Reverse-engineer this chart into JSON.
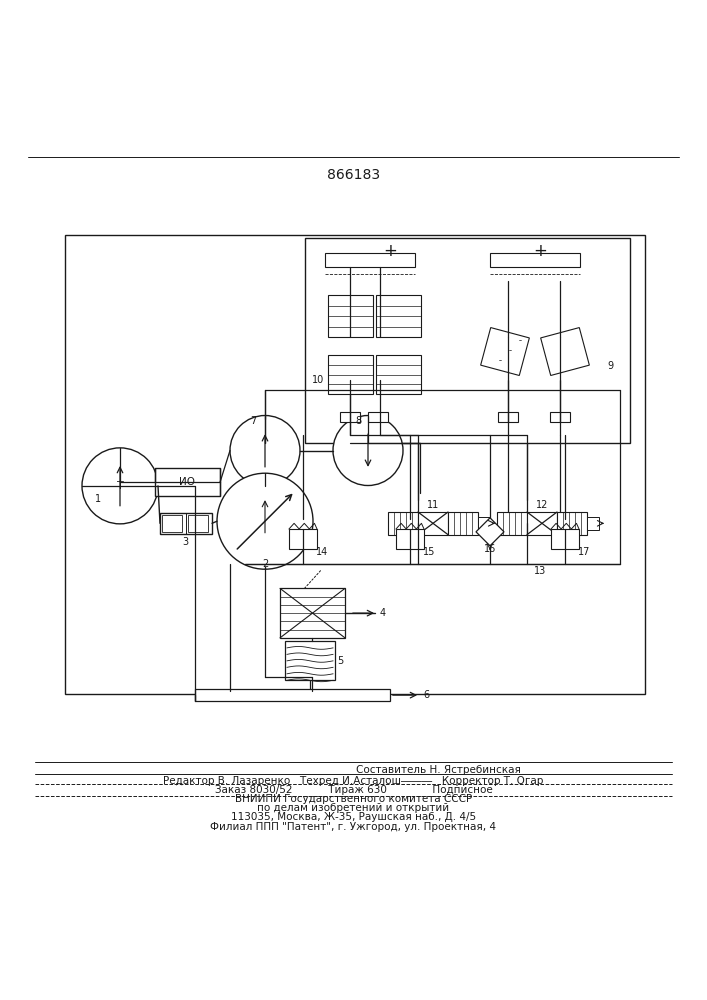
{
  "title": "866183",
  "bg_color": "#ffffff",
  "line_color": "#1a1a1a",
  "footer_lines": [
    "Составитель Н. Ястребинская",
    "Редактор В. Лазаренко   Техред И.Асталош―――   Корректор Т. Огар",
    "Заказ 8030/52           Тираж 630              Подписное",
    "ВНИИПИ Государственного комитета СССР",
    "по делам изобретений и открытий",
    "113035, Москва, Ж-35, Раушская наб., Д. 4/5",
    "Филиал ППП \"Патент\", г. Ужгород, ул. Проектная, 4"
  ]
}
